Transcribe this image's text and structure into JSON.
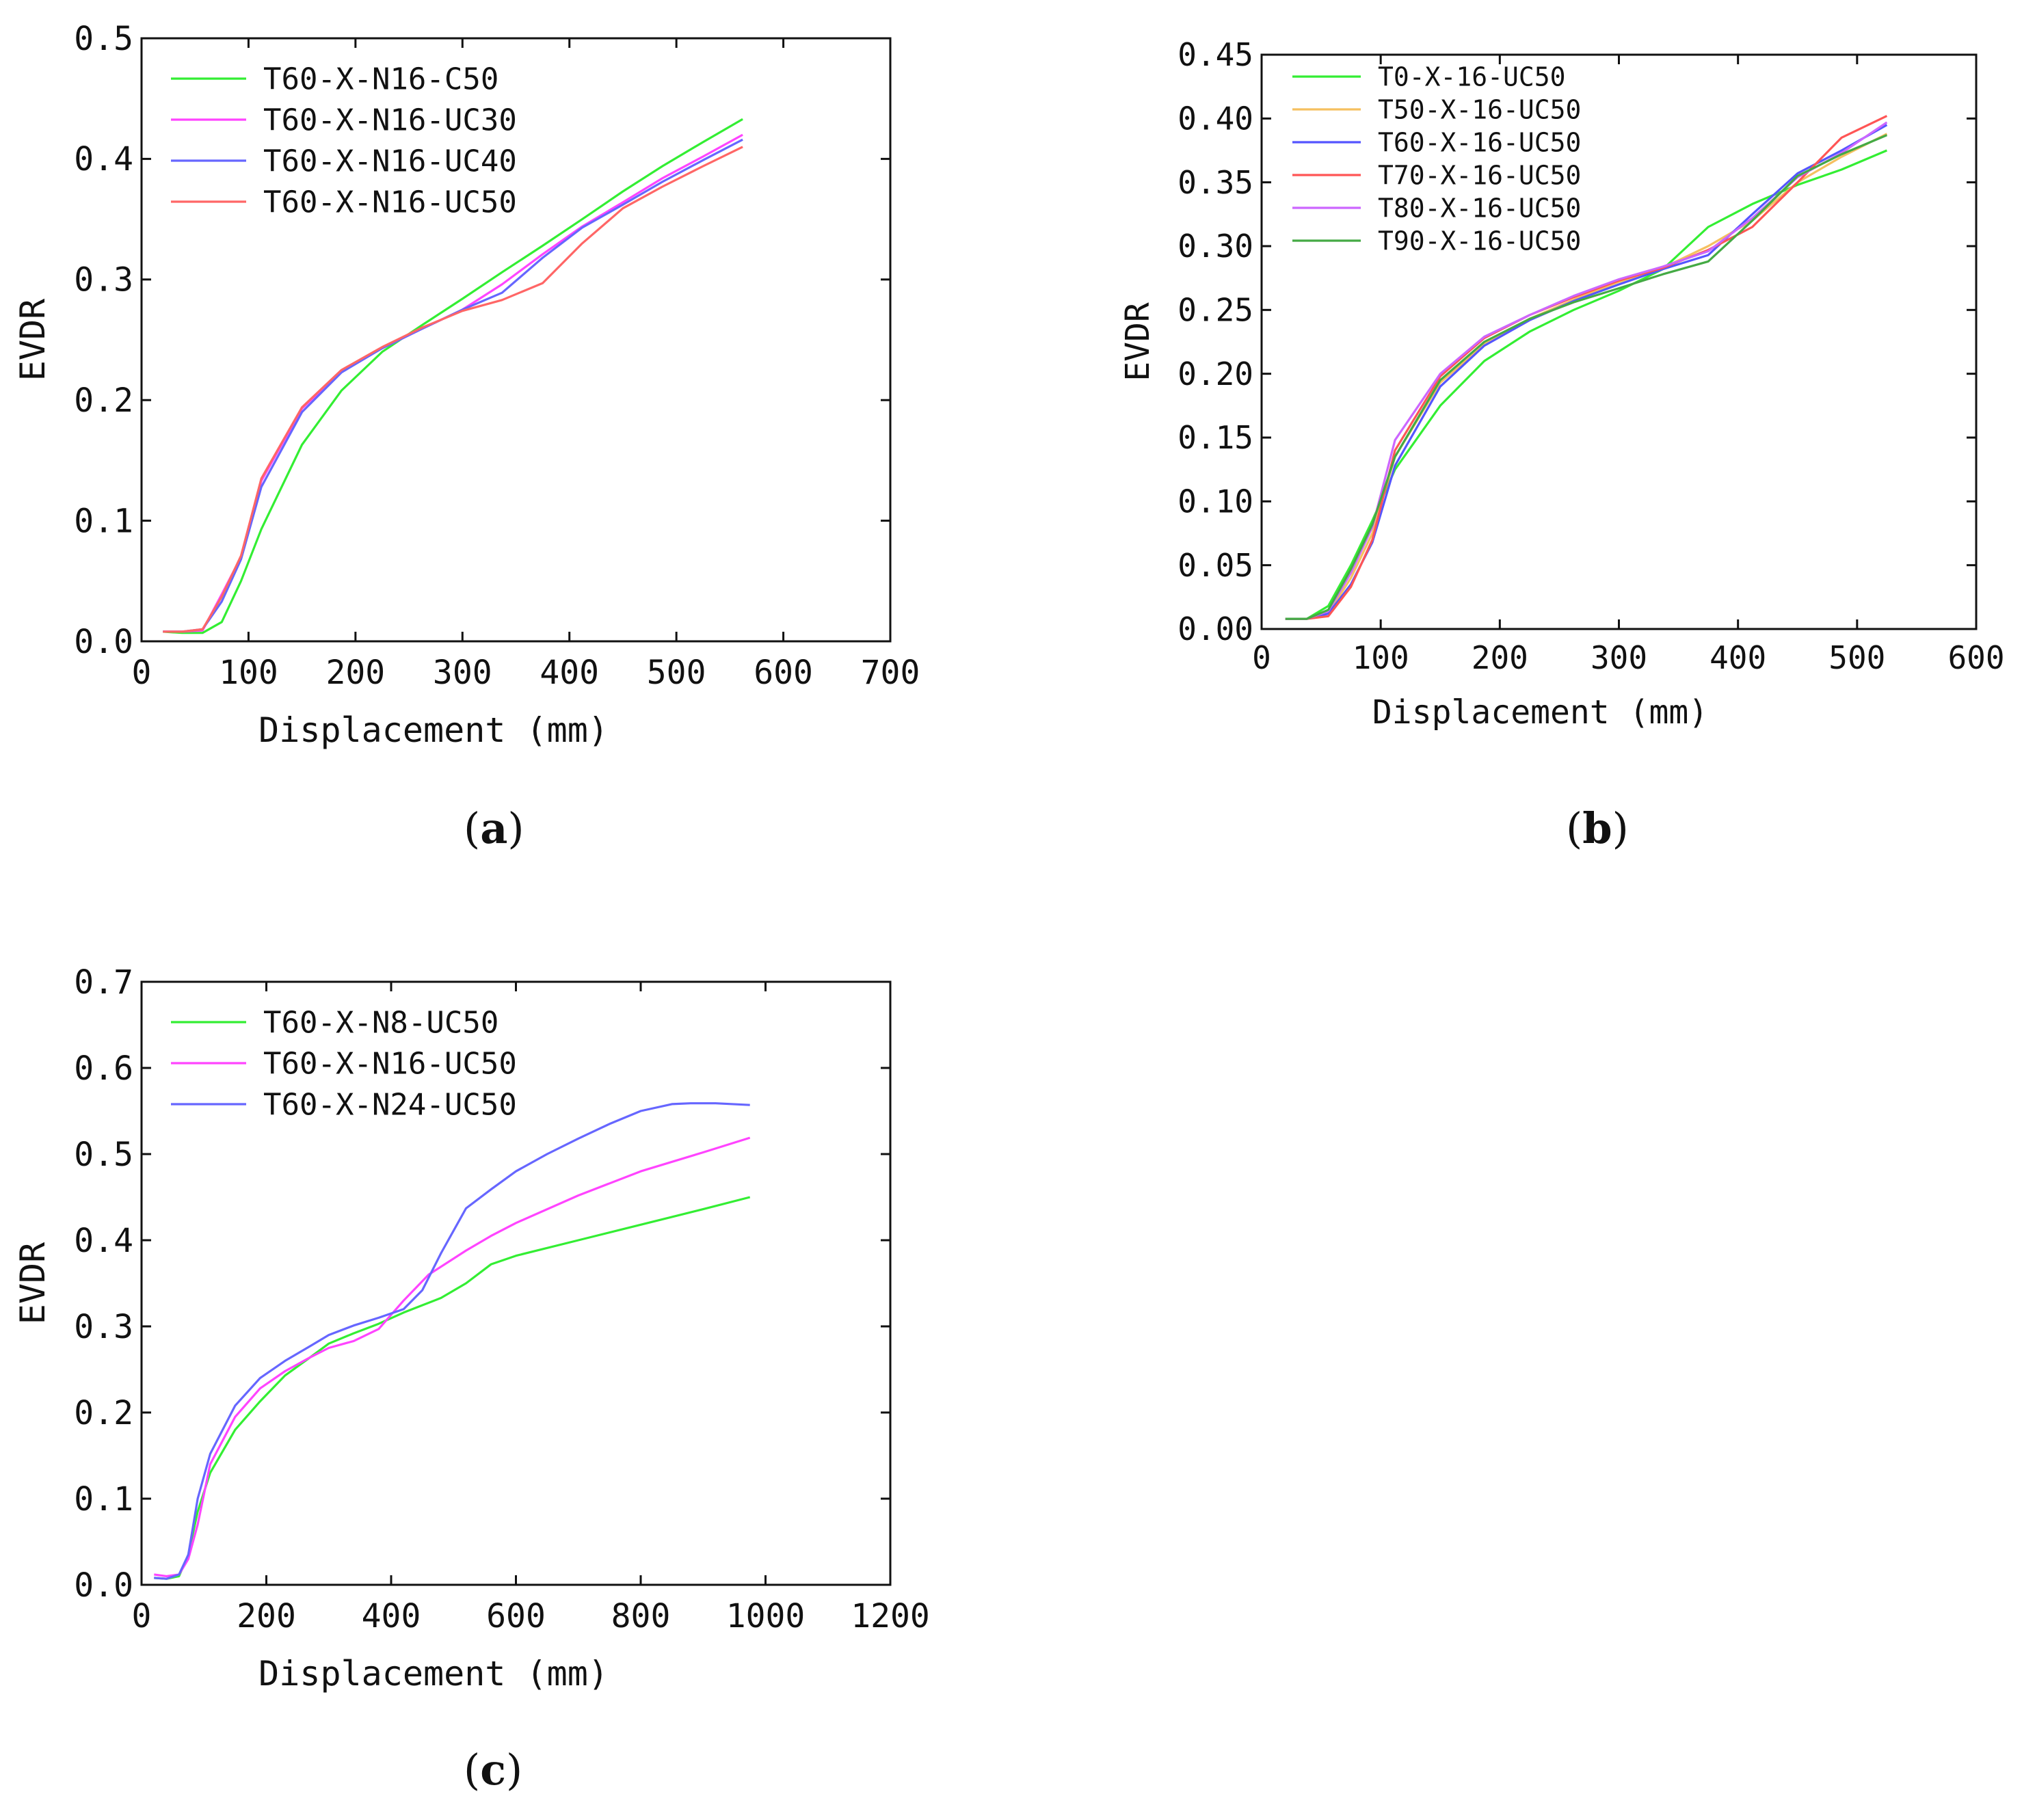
{
  "chart_data": [
    {
      "id": "a",
      "type": "line",
      "caption_letter": "a",
      "title": "",
      "xlabel": "Displacement (mm)",
      "ylabel": "EVDR",
      "xlim": [
        0,
        700
      ],
      "ylim": [
        0,
        0.5
      ],
      "xticks": [
        0,
        100,
        200,
        300,
        400,
        500,
        600,
        700
      ],
      "yticks": [
        0.0,
        0.1,
        0.2,
        0.3,
        0.4,
        0.5
      ],
      "xtick_labels": [
        "0",
        "100",
        "200",
        "300",
        "400",
        "500",
        "600",
        "700"
      ],
      "ytick_labels": [
        "0.0",
        "0.1",
        "0.2",
        "0.3",
        "0.4",
        "0.5"
      ],
      "grid": false,
      "legend": "top-left",
      "series": [
        {
          "name": "T60-X-N16-C50",
          "color": "#33ee33",
          "x": [
            20,
            38,
            57,
            75,
            93,
            112,
            150,
            187,
            225,
            262,
            300,
            337,
            375,
            412,
            450,
            487,
            525,
            562
          ],
          "y": [
            0.008,
            0.007,
            0.007,
            0.016,
            0.05,
            0.093,
            0.163,
            0.208,
            0.24,
            0.262,
            0.284,
            0.306,
            0.328,
            0.35,
            0.373,
            0.394,
            0.414,
            0.433
          ]
        },
        {
          "name": "T60-X-N16-UC30",
          "color": "#ff44ff",
          "x": [
            20,
            38,
            57,
            75,
            93,
            112,
            150,
            187,
            225,
            262,
            300,
            337,
            375,
            412,
            450,
            487,
            525,
            562
          ],
          "y": [
            0.008,
            0.008,
            0.009,
            0.039,
            0.07,
            0.133,
            0.193,
            0.224,
            0.243,
            0.259,
            0.275,
            0.296,
            0.321,
            0.344,
            0.364,
            0.384,
            0.402,
            0.42
          ]
        },
        {
          "name": "T60-X-N16-UC40",
          "color": "#6666ff",
          "x": [
            20,
            38,
            57,
            75,
            93,
            112,
            150,
            187,
            225,
            262,
            300,
            337,
            375,
            412,
            450,
            487,
            525,
            562
          ],
          "y": [
            0.008,
            0.008,
            0.01,
            0.033,
            0.068,
            0.128,
            0.19,
            0.223,
            0.243,
            0.259,
            0.275,
            0.289,
            0.318,
            0.343,
            0.362,
            0.381,
            0.399,
            0.416
          ]
        },
        {
          "name": "T60-X-N16-UC50",
          "color": "#ff6666",
          "x": [
            20,
            38,
            57,
            75,
            93,
            112,
            150,
            187,
            225,
            262,
            300,
            337,
            375,
            412,
            450,
            487,
            525,
            562
          ],
          "y": [
            0.008,
            0.008,
            0.01,
            0.037,
            0.071,
            0.135,
            0.194,
            0.225,
            0.244,
            0.26,
            0.274,
            0.283,
            0.297,
            0.33,
            0.359,
            0.377,
            0.394,
            0.41
          ]
        }
      ]
    },
    {
      "id": "b",
      "type": "line",
      "caption_letter": "b",
      "title": "",
      "xlabel": "Displacement (mm)",
      "ylabel": "EVDR",
      "xlim": [
        0,
        600
      ],
      "ylim": [
        0,
        0.45
      ],
      "xticks": [
        0,
        100,
        200,
        300,
        400,
        500,
        600
      ],
      "yticks": [
        0.0,
        0.05,
        0.1,
        0.15,
        0.2,
        0.25,
        0.3,
        0.35,
        0.4,
        0.45
      ],
      "xtick_labels": [
        "0",
        "100",
        "200",
        "300",
        "400",
        "500",
        "600"
      ],
      "ytick_labels": [
        "0.00",
        "0.05",
        "0.10",
        "0.15",
        "0.20",
        "0.25",
        "0.30",
        "0.35",
        "0.40",
        "0.45"
      ],
      "grid": false,
      "legend": "top-left",
      "series": [
        {
          "name": "T0-X-16-UC50",
          "color": "#33ee33",
          "x": [
            20,
            38,
            56,
            75,
            93,
            112,
            150,
            187,
            225,
            262,
            300,
            337,
            375,
            412,
            450,
            487,
            525
          ],
          "y": [
            0.008,
            0.008,
            0.018,
            0.05,
            0.085,
            0.125,
            0.175,
            0.21,
            0.233,
            0.25,
            0.265,
            0.282,
            0.315,
            0.333,
            0.348,
            0.36,
            0.375
          ]
        },
        {
          "name": "T50-X-16-UC50",
          "color": "#f5c060",
          "x": [
            20,
            38,
            56,
            75,
            93,
            112,
            150,
            187,
            225,
            262,
            300,
            337,
            375,
            412,
            450,
            487,
            525
          ],
          "y": [
            0.008,
            0.008,
            0.012,
            0.04,
            0.075,
            0.135,
            0.193,
            0.223,
            0.243,
            0.258,
            0.272,
            0.283,
            0.3,
            0.32,
            0.35,
            0.37,
            0.388
          ]
        },
        {
          "name": "T60-X-16-UC50",
          "color": "#5555ff",
          "x": [
            20,
            38,
            56,
            75,
            93,
            112,
            150,
            187,
            225,
            262,
            300,
            337,
            375,
            412,
            450,
            487,
            525
          ],
          "y": [
            0.008,
            0.008,
            0.012,
            0.035,
            0.068,
            0.128,
            0.19,
            0.222,
            0.242,
            0.257,
            0.27,
            0.282,
            0.293,
            0.325,
            0.357,
            0.375,
            0.395
          ]
        },
        {
          "name": "T70-X-16-UC50",
          "color": "#ff5555",
          "x": [
            20,
            38,
            56,
            75,
            93,
            112,
            150,
            187,
            225,
            262,
            300,
            337,
            375,
            412,
            450,
            487,
            525
          ],
          "y": [
            0.008,
            0.008,
            0.01,
            0.033,
            0.07,
            0.14,
            0.198,
            0.228,
            0.246,
            0.26,
            0.273,
            0.283,
            0.297,
            0.315,
            0.35,
            0.385,
            0.402
          ]
        },
        {
          "name": "T80-X-16-UC50",
          "color": "#cc66ff",
          "x": [
            20,
            38,
            56,
            75,
            93,
            112,
            150,
            187,
            225,
            262,
            300,
            337,
            375,
            412,
            450,
            487,
            525
          ],
          "y": [
            0.008,
            0.008,
            0.014,
            0.044,
            0.08,
            0.148,
            0.2,
            0.229,
            0.246,
            0.261,
            0.274,
            0.284,
            0.296,
            0.322,
            0.354,
            0.373,
            0.397
          ]
        },
        {
          "name": "T90-X-16-UC50",
          "color": "#44aa44",
          "x": [
            20,
            38,
            56,
            75,
            93,
            112,
            150,
            187,
            225,
            262,
            300,
            337,
            375,
            412,
            450,
            487,
            525
          ],
          "y": [
            0.008,
            0.008,
            0.015,
            0.047,
            0.082,
            0.135,
            0.195,
            0.225,
            0.243,
            0.256,
            0.267,
            0.278,
            0.288,
            0.32,
            0.355,
            0.372,
            0.387
          ]
        }
      ]
    },
    {
      "id": "c",
      "type": "line",
      "caption_letter": "c",
      "title": "",
      "xlabel": "Displacement (mm)",
      "ylabel": "EVDR",
      "xlim": [
        0,
        1200
      ],
      "ylim": [
        0,
        0.7
      ],
      "xticks": [
        0,
        200,
        400,
        600,
        800,
        1000,
        1200
      ],
      "yticks": [
        0.0,
        0.1,
        0.2,
        0.3,
        0.4,
        0.5,
        0.6,
        0.7
      ],
      "xtick_labels": [
        "0",
        "200",
        "400",
        "600",
        "800",
        "1000",
        "1200"
      ],
      "ytick_labels": [
        "0.0",
        "0.1",
        "0.2",
        "0.3",
        "0.4",
        "0.5",
        "0.6",
        "0.7"
      ],
      "grid": false,
      "legend": "top-left",
      "series": [
        {
          "name": "T60-X-N8-UC50",
          "color": "#33ee33",
          "x": [
            20,
            40,
            60,
            75,
            90,
            110,
            150,
            190,
            230,
            270,
            300,
            340,
            380,
            420,
            480,
            520,
            560,
            600,
            700,
            800,
            900,
            975
          ],
          "y": [
            0.008,
            0.007,
            0.01,
            0.035,
            0.085,
            0.13,
            0.18,
            0.213,
            0.243,
            0.264,
            0.28,
            0.292,
            0.303,
            0.316,
            0.333,
            0.35,
            0.372,
            0.382,
            0.4,
            0.418,
            0.436,
            0.45
          ]
        },
        {
          "name": "T60-X-N16-UC50",
          "color": "#ff44ff",
          "x": [
            20,
            40,
            60,
            75,
            90,
            110,
            150,
            190,
            230,
            270,
            300,
            340,
            380,
            420,
            460,
            520,
            560,
            600,
            700,
            800,
            900,
            975
          ],
          "y": [
            0.012,
            0.01,
            0.012,
            0.03,
            0.07,
            0.14,
            0.195,
            0.228,
            0.248,
            0.264,
            0.275,
            0.283,
            0.297,
            0.33,
            0.36,
            0.388,
            0.405,
            0.42,
            0.452,
            0.48,
            0.502,
            0.519
          ]
        },
        {
          "name": "T60-X-N24-UC50",
          "color": "#6666ff",
          "x": [
            20,
            40,
            60,
            75,
            90,
            110,
            150,
            190,
            230,
            270,
            300,
            340,
            380,
            420,
            450,
            480,
            520,
            560,
            600,
            650,
            700,
            750,
            800,
            850,
            880,
            920,
            975
          ],
          "y": [
            0.008,
            0.007,
            0.012,
            0.035,
            0.1,
            0.152,
            0.208,
            0.24,
            0.26,
            0.277,
            0.29,
            0.301,
            0.31,
            0.32,
            0.342,
            0.385,
            0.437,
            0.459,
            0.48,
            0.5,
            0.518,
            0.535,
            0.55,
            0.558,
            0.559,
            0.559,
            0.557
          ]
        }
      ]
    }
  ]
}
